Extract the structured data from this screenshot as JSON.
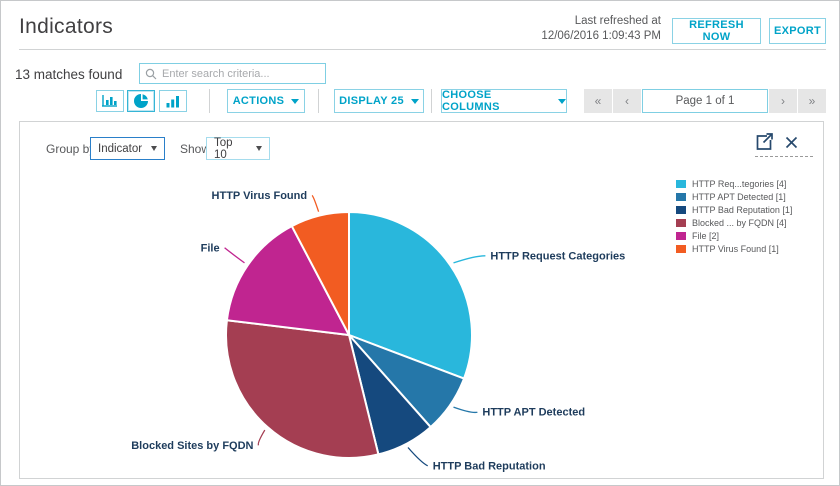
{
  "header": {
    "title": "Indicators",
    "last_refreshed_line1": "Last refreshed at",
    "last_refreshed_line2": "12/06/2016 1:09:43 PM",
    "refresh_button": "REFRESH NOW",
    "export_button": "EXPORT"
  },
  "toolbar": {
    "matches_text": "13 matches found",
    "search_placeholder": "Enter search criteria...",
    "actions_label": "ACTIONS",
    "display_label": "DISPLAY 25",
    "choose_columns_label": "CHOOSE COLUMNS",
    "pagination": {
      "first": "«",
      "prev": "‹",
      "page_text": "Page 1 of 1",
      "next": "›",
      "last": "»"
    }
  },
  "panel": {
    "group_by_label": "Group by",
    "group_by_value": "Indicator",
    "show_label": "Show",
    "show_value": "Top 10"
  },
  "colors": {
    "accent": "#00a3c8",
    "accent_border": "#8ad2e5",
    "slice_label_text": "#1e3c5c"
  },
  "chart_data": {
    "type": "pie",
    "title": "",
    "total": 13,
    "direction": "clockwise",
    "start_angle_deg": 0,
    "legend_position": "right",
    "slices": [
      {
        "label": "HTTP Request Categories",
        "legend_label": "HTTP Req...tegories [4]",
        "value": 4,
        "color": "#29b7dc"
      },
      {
        "label": "HTTP APT Detected",
        "legend_label": "HTTP APT Detected [1]",
        "value": 1,
        "color": "#2577a9"
      },
      {
        "label": "HTTP Bad Reputation",
        "legend_label": "HTTP Bad Reputation [1]",
        "value": 1,
        "color": "#15497e"
      },
      {
        "label": "Blocked Sites by FQDN",
        "legend_label": "Blocked ... by FQDN [4]",
        "value": 4,
        "color": "#a43e52"
      },
      {
        "label": "File",
        "legend_label": "File [2]",
        "value": 2,
        "color": "#c02590"
      },
      {
        "label": "HTTP Virus Found",
        "legend_label": "HTTP Virus Found [1]",
        "value": 1,
        "color": "#f25c22"
      }
    ]
  }
}
